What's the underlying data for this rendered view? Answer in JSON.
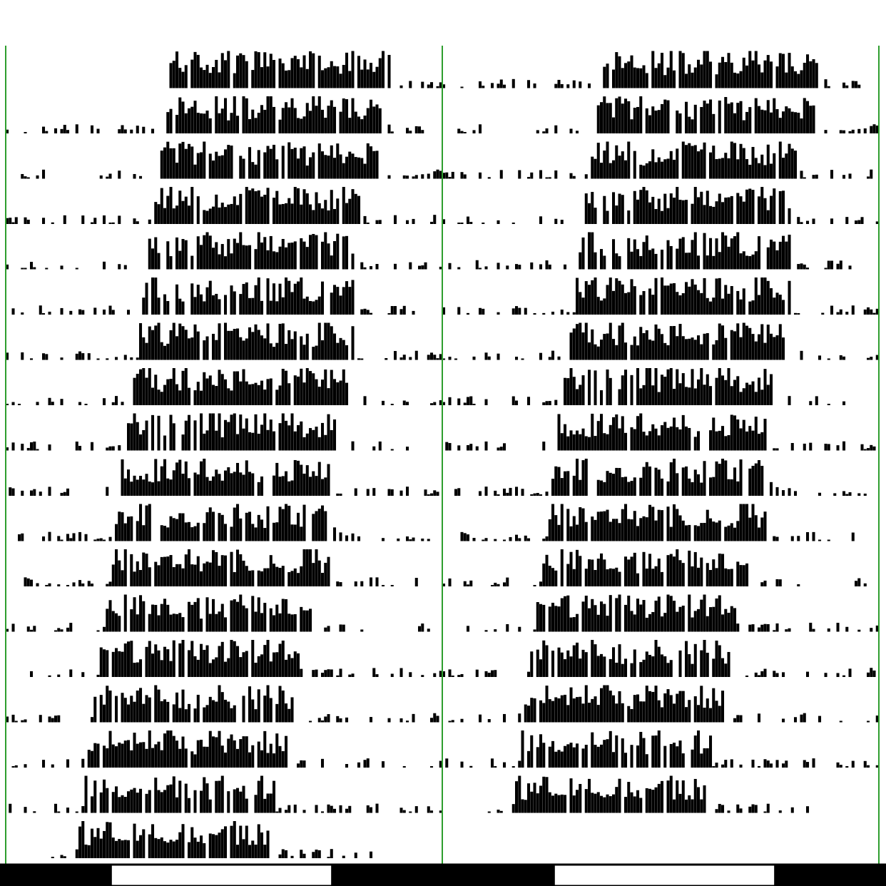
{
  "chart_data": {
    "type": "bar",
    "variant": "double-plotted actogram",
    "title": "",
    "xlabel": "",
    "ylabel": "",
    "days": 18,
    "plotted_days_per_row": 2,
    "bins_per_day": 144,
    "grid": false,
    "divider_color": "#2e9e2e",
    "activity_color": "#000000",
    "light_dark_bar": {
      "pattern": [
        "dark",
        "light",
        "dark",
        "light",
        "dark"
      ],
      "day_fraction": [
        0.25,
        0.5,
        0.5,
        0.5,
        0.25
      ],
      "dark_color": "#000000",
      "light_color": "#ffffff"
    },
    "days_data": [
      {
        "day": 1,
        "onset_hour": 9.0,
        "active_hours": 12.0,
        "recording_starts_hour": 9.0
      },
      {
        "day": 2,
        "onset_hour": 8.7,
        "active_hours": 12.0
      },
      {
        "day": 3,
        "onset_hour": 8.4,
        "active_hours": 12.0
      },
      {
        "day": 4,
        "onset_hour": 8.1,
        "active_hours": 11.5
      },
      {
        "day": 5,
        "onset_hour": 7.8,
        "active_hours": 11.5
      },
      {
        "day": 6,
        "onset_hour": 7.5,
        "active_hours": 11.5
      },
      {
        "day": 7,
        "onset_hour": 7.2,
        "active_hours": 12.0
      },
      {
        "day": 8,
        "onset_hour": 6.9,
        "active_hours": 12.0
      },
      {
        "day": 9,
        "onset_hour": 6.6,
        "active_hours": 11.5
      },
      {
        "day": 10,
        "onset_hour": 6.3,
        "active_hours": 11.5
      },
      {
        "day": 11,
        "onset_hour": 6.0,
        "active_hours": 12.0
      },
      {
        "day": 12,
        "onset_hour": 5.7,
        "active_hours": 12.0
      },
      {
        "day": 13,
        "onset_hour": 5.4,
        "active_hours": 11.5
      },
      {
        "day": 14,
        "onset_hour": 5.1,
        "active_hours": 11.0
      },
      {
        "day": 15,
        "onset_hour": 4.8,
        "active_hours": 11.0
      },
      {
        "day": 16,
        "onset_hour": 4.5,
        "active_hours": 11.0
      },
      {
        "day": 17,
        "onset_hour": 4.2,
        "active_hours": 10.5
      },
      {
        "day": 18,
        "onset_hour": 3.9,
        "active_hours": 10.5,
        "recording_ends_hour": 20.0
      }
    ]
  }
}
